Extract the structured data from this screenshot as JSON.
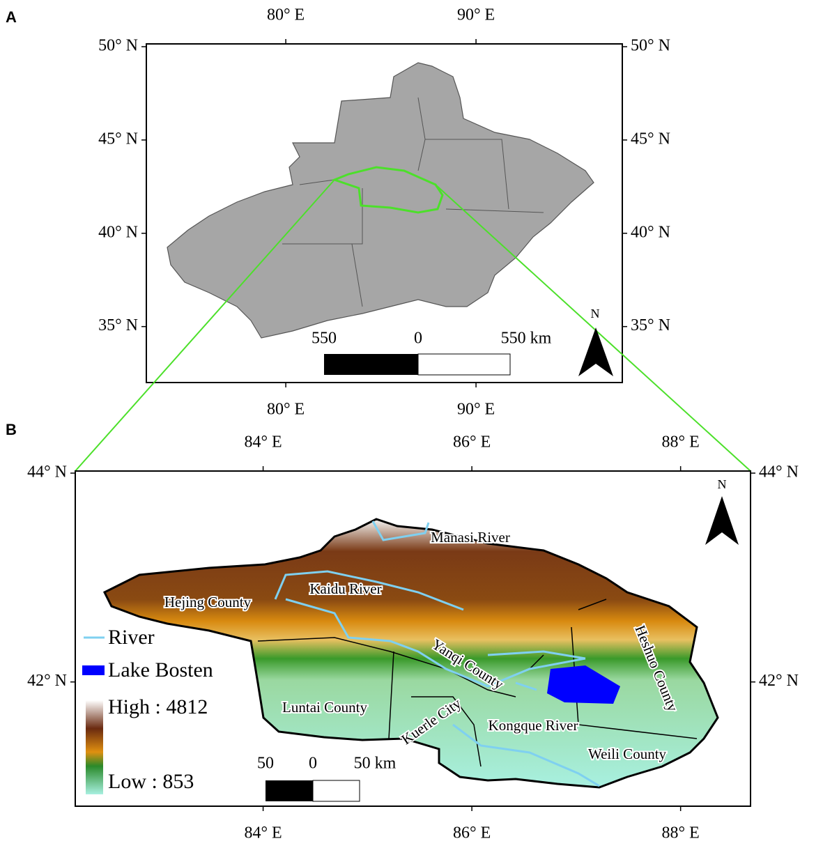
{
  "panel_a": {
    "label": "A",
    "lon_ticks": [
      {
        "value": 80,
        "label": "80° E"
      },
      {
        "value": 90,
        "label": "90° E"
      }
    ],
    "lat_ticks": [
      {
        "value": 50,
        "label": "50° N"
      },
      {
        "value": 45,
        "label": "45° N"
      },
      {
        "value": 40,
        "label": "40° N"
      },
      {
        "value": 35,
        "label": "35° N"
      }
    ],
    "xlim": [
      72.67,
      97.69
    ],
    "ylim": [
      32.0,
      50.15
    ],
    "scale_bar": [
      "550",
      "0",
      "550 km"
    ],
    "north": "N"
  },
  "panel_b": {
    "label": "B",
    "lon_ticks": [
      {
        "value": 84,
        "label": "84° E"
      },
      {
        "value": 86,
        "label": "86° E"
      },
      {
        "value": 88,
        "label": "88° E"
      }
    ],
    "lat_ticks": [
      {
        "value": 44,
        "label": "44° N"
      },
      {
        "value": 42,
        "label": "42° N"
      }
    ],
    "xlim": [
      82.2,
      88.67
    ],
    "ylim": [
      40.81,
      44.02
    ],
    "places": [
      "Manasi River",
      "Kaidu River",
      "Hejing County",
      "Yanqi County",
      "Heshuo County",
      "Luntai County",
      "Kuerle City",
      "Kongque River",
      "Weili County"
    ],
    "legend": [
      "River",
      "Lake Bosten",
      "High : 4812",
      "Low : 853"
    ],
    "scale_bar": [
      "50",
      "0",
      "50 km"
    ],
    "north": "N"
  }
}
